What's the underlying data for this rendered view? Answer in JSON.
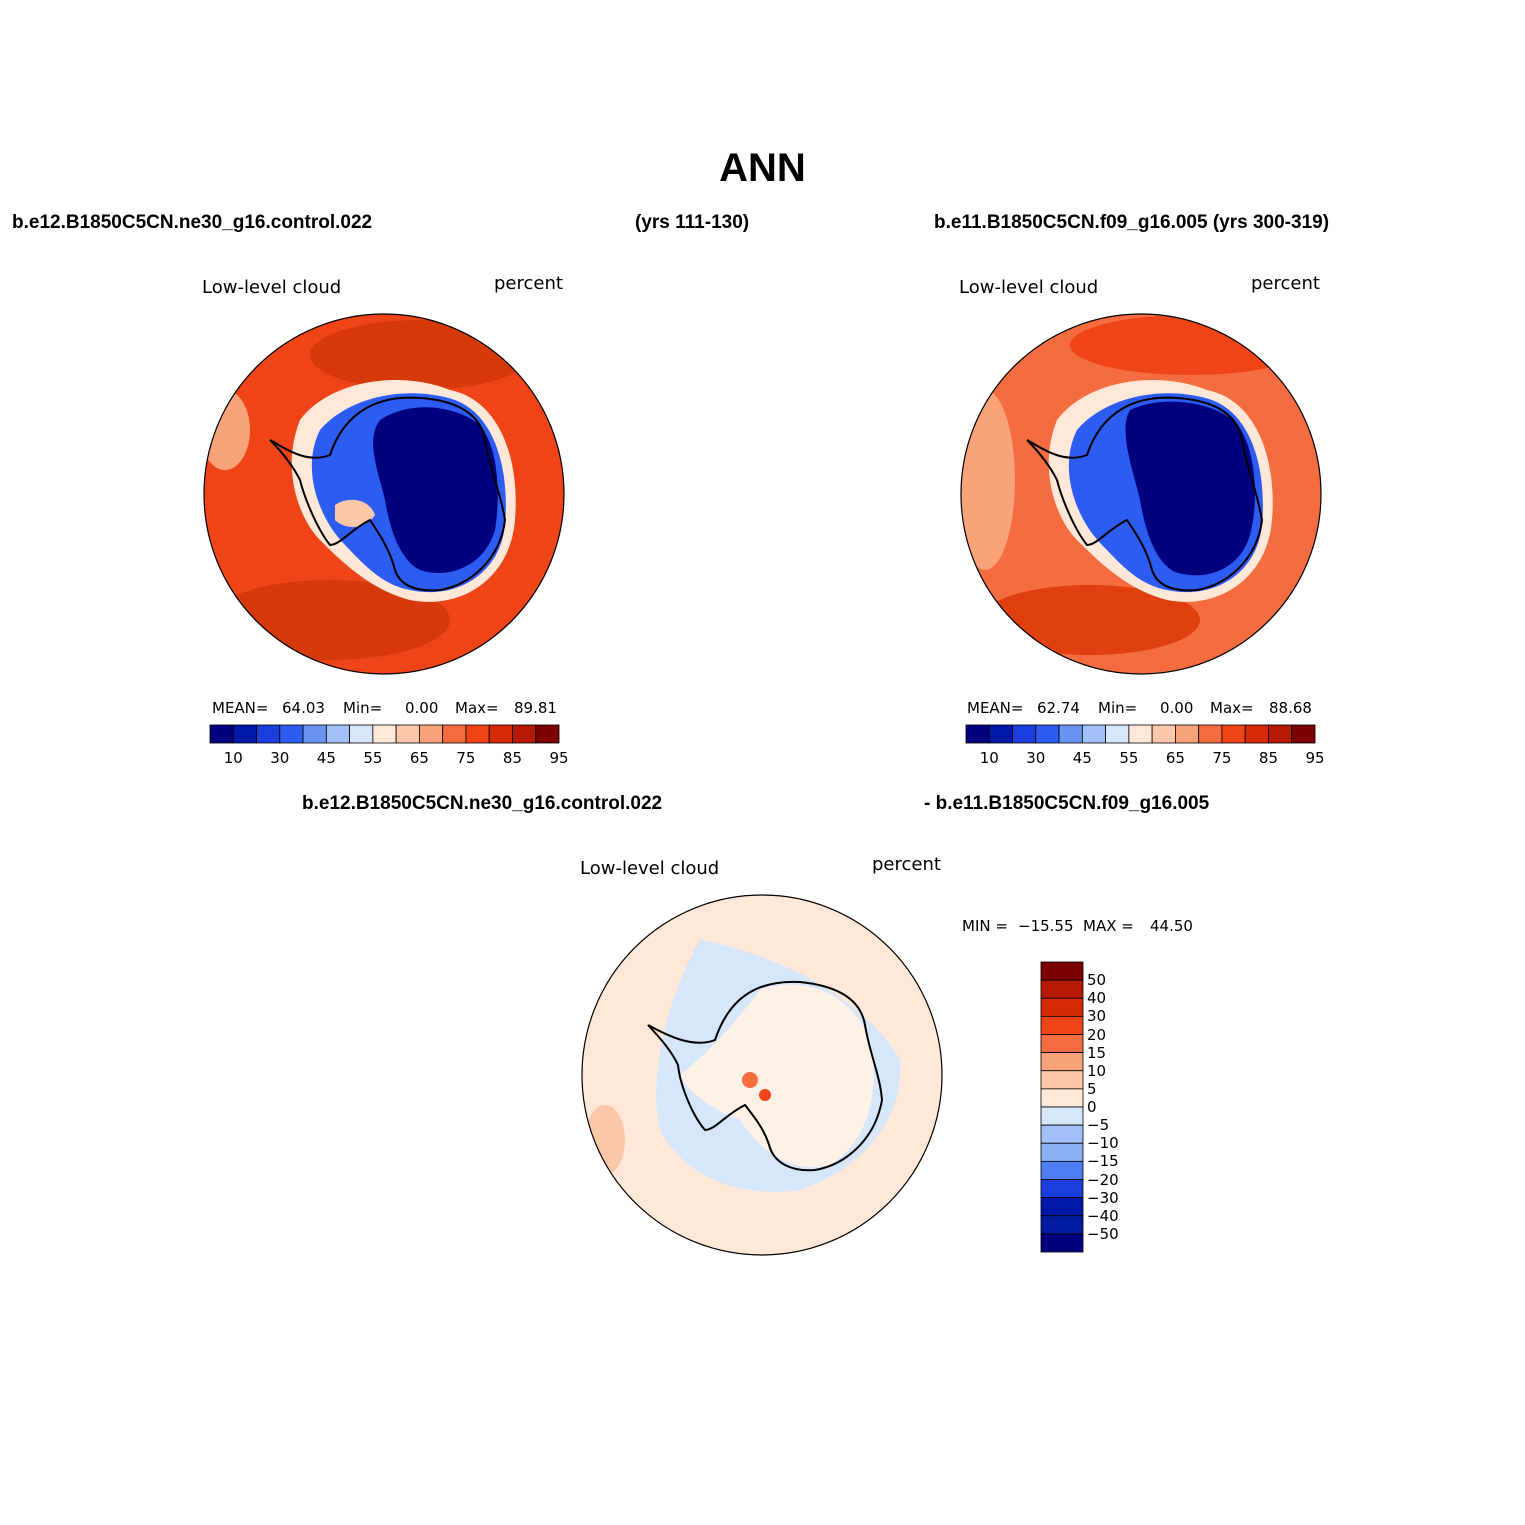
{
  "title": "ANN",
  "header": {
    "left_case": "b.e12.B1850C5CN.ne30_g16.control.022",
    "left_years": "(yrs 111-130)",
    "right_case": "b.e11.B1850C5CN.f09_g16.005 (yrs 300-319)",
    "diff_case_a": "b.e12.B1850C5CN.ne30_g16.control.022",
    "diff_case_b": "- b.e11.B1850C5CN.f09_g16.005"
  },
  "colors": {
    "abs_scale": [
      "#00007f",
      "#0018a8",
      "#1a3ddb",
      "#2c5cf2",
      "#6a94f4",
      "#a3bff7",
      "#d6e6fb",
      "#ffe8d8",
      "#fcc8aa",
      "#f9a37a",
      "#f56c40",
      "#ef4418",
      "#d62a06",
      "#b51903",
      "#7d0000"
    ],
    "diff_scale": [
      "#7d0000",
      "#b51903",
      "#d62a06",
      "#ef4418",
      "#f56c40",
      "#f9a37a",
      "#fcc8aa",
      "#ffe8d8",
      "#d6e6fb",
      "#a3bff7",
      "#8caef5",
      "#4f7df4",
      "#1a3ddb",
      "#0018a8",
      "#001aa0",
      "#00007f"
    ],
    "coast": "#000000"
  },
  "chart_data": [
    {
      "type": "heatmap",
      "projection": "south-polar-stereographic",
      "field": "Low-level cloud",
      "units": "percent",
      "stats": {
        "mean_label": "MEAN=",
        "mean": "64.03",
        "min_label": "Min=",
        "min": "0.00",
        "max_label": "Max=",
        "max": "89.81"
      },
      "colorbar": {
        "orientation": "horizontal",
        "levels": [
          5,
          10,
          15,
          20,
          30,
          40,
          45,
          50,
          55,
          60,
          65,
          70,
          75,
          80,
          85,
          90,
          95
        ],
        "tick_labels": [
          "10",
          "30",
          "45",
          "55",
          "65",
          "75",
          "85",
          "95"
        ]
      }
    },
    {
      "type": "heatmap",
      "projection": "south-polar-stereographic",
      "field": "Low-level cloud",
      "units": "percent",
      "stats": {
        "mean_label": "MEAN=",
        "mean": "62.74",
        "min_label": "Min=",
        "min": "0.00",
        "max_label": "Max=",
        "max": "88.68"
      },
      "colorbar": {
        "orientation": "horizontal",
        "levels": [
          5,
          10,
          15,
          20,
          30,
          40,
          45,
          50,
          55,
          60,
          65,
          70,
          75,
          80,
          85,
          90,
          95
        ],
        "tick_labels": [
          "10",
          "30",
          "45",
          "55",
          "65",
          "75",
          "85",
          "95"
        ]
      }
    },
    {
      "type": "heatmap",
      "projection": "south-polar-stereographic",
      "field": "Low-level cloud",
      "units": "percent",
      "stats": {
        "min_label": "MIN =",
        "min": "−15.55",
        "max_label": "MAX =",
        "max": "44.50"
      },
      "colorbar": {
        "orientation": "vertical",
        "levels": [
          50,
          40,
          30,
          20,
          15,
          10,
          5,
          0,
          -5,
          -10,
          -15,
          -20,
          -30,
          -40,
          -50
        ],
        "tick_labels": [
          "50",
          "40",
          "30",
          "20",
          "15",
          "10",
          "5",
          "0",
          "−5",
          "−10",
          "−15",
          "−20",
          "−30",
          "−40",
          "−50"
        ]
      }
    }
  ]
}
